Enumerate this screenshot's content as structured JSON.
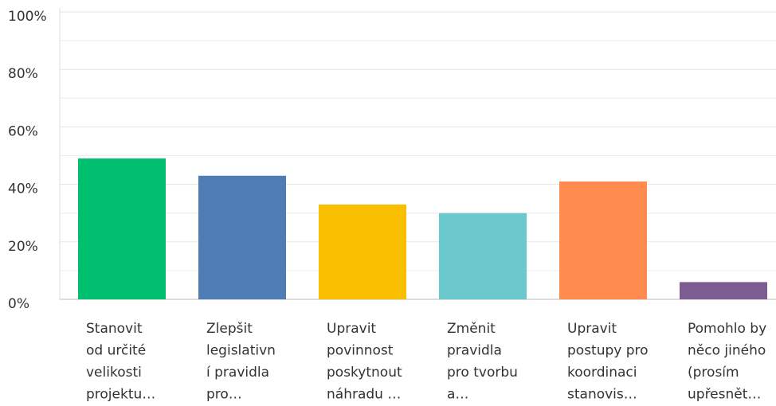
{
  "chart_data": {
    "type": "bar",
    "categories": [
      [
        "Stanovit",
        "od určité",
        "velikosti",
        "projektu…"
      ],
      [
        "Zlepšit",
        "legislativn",
        "í pravidla",
        "pro…"
      ],
      [
        "Upravit",
        "povinnost",
        "poskytnout",
        "náhradu …"
      ],
      [
        "Změnit",
        "pravidla",
        "pro tvorbu",
        "a…"
      ],
      [
        "Upravit",
        "postupy pro",
        "koordinaci",
        "stanovis…"
      ],
      [
        "Pomohlo by",
        "něco jiného",
        "(prosím",
        "upřesnět…"
      ]
    ],
    "values": [
      49,
      43,
      33,
      30,
      41,
      6
    ],
    "colors": [
      "#00bf6f",
      "#507cb6",
      "#f9be00",
      "#6bc8cd",
      "#ff8b4f",
      "#7d5c91"
    ],
    "ylim": [
      0,
      100
    ],
    "yticks": [
      {
        "value": 0,
        "label": "0%"
      },
      {
        "value": 20,
        "label": "20%"
      },
      {
        "value": 40,
        "label": "40%"
      },
      {
        "value": 60,
        "label": "60%"
      },
      {
        "value": 80,
        "label": "80%"
      },
      {
        "value": 100,
        "label": "100%"
      }
    ],
    "minor_yticks": [
      10,
      30,
      50,
      70,
      90
    ],
    "grid": true
  }
}
